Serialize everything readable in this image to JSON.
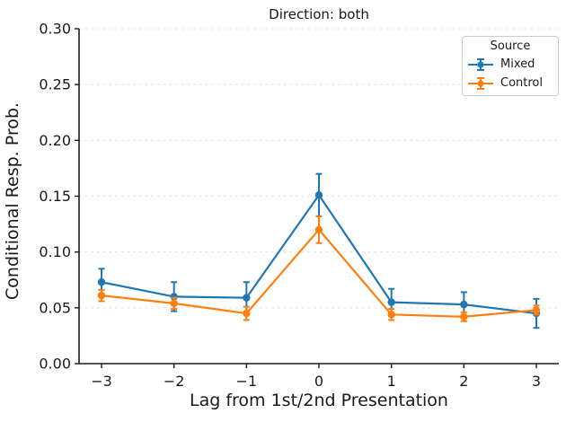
{
  "chart_data": {
    "type": "line",
    "title": "Direction: both",
    "xlabel": "Lag from 1st/2nd Presentation",
    "ylabel": "Conditional Resp. Prob.",
    "legend_title": "Source",
    "legend_position": "upper right",
    "grid": "horizontal-dashed",
    "x": [
      -3,
      -2,
      -1,
      0,
      1,
      2,
      3
    ],
    "x_tick_labels": [
      "−3",
      "−2",
      "−1",
      "0",
      "1",
      "2",
      "3"
    ],
    "xlim": [
      -3.31,
      3.31
    ],
    "ylim": [
      0,
      0.3
    ],
    "y_ticks": [
      0,
      0.05,
      0.1,
      0.15,
      0.2,
      0.25,
      0.3
    ],
    "y_tick_labels": [
      "0.00",
      "0.05",
      "0.10",
      "0.15",
      "0.20",
      "0.25",
      "0.30"
    ],
    "series": [
      {
        "name": "Mixed",
        "color": "#1f77b4",
        "marker": "circle",
        "values": [
          0.073,
          0.06,
          0.059,
          0.151,
          0.055,
          0.053,
          0.045
        ],
        "errors": [
          0.012,
          0.013,
          0.014,
          0.019,
          0.012,
          0.011,
          0.013
        ]
      },
      {
        "name": "Control",
        "color": "#ff7f0e",
        "marker": "circle",
        "values": [
          0.061,
          0.054,
          0.045,
          0.12,
          0.044,
          0.042,
          0.048
        ],
        "errors": [
          0.005,
          0.005,
          0.006,
          0.012,
          0.005,
          0.004,
          0.004
        ]
      }
    ],
    "style": {
      "grid_color": "#e0e0e0",
      "spine_color": "#1a1a1a",
      "text_color": "#1a1a1a"
    }
  }
}
